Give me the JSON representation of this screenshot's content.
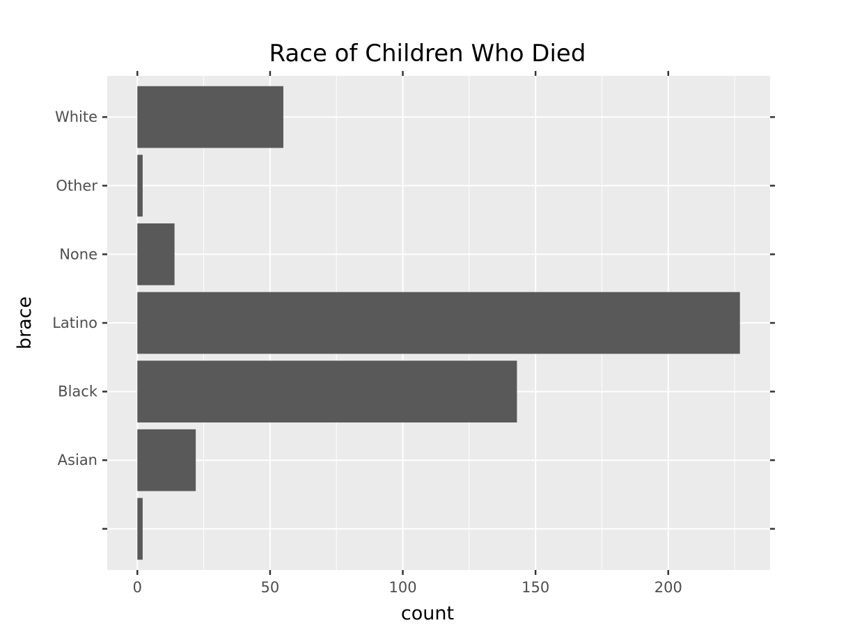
{
  "chart_data": {
    "type": "bar",
    "orientation": "horizontal",
    "title": "Race of Children Who Died",
    "xlabel": "count",
    "ylabel": "brace",
    "categories": [
      "",
      "Asian",
      "Black",
      "Latino",
      "None",
      "Other",
      "White"
    ],
    "values": [
      2,
      22,
      143,
      227,
      14,
      2,
      55
    ],
    "xlim": [
      -11.35,
      238.35
    ],
    "xticks": [
      0,
      50,
      100,
      150,
      200
    ],
    "grid": true,
    "legend": "none",
    "colors": {
      "bar": "#595959",
      "panel": "#ebebeb",
      "grid": "#ffffff",
      "tick_label": "#4d4d4d",
      "tick": "#333333"
    }
  }
}
